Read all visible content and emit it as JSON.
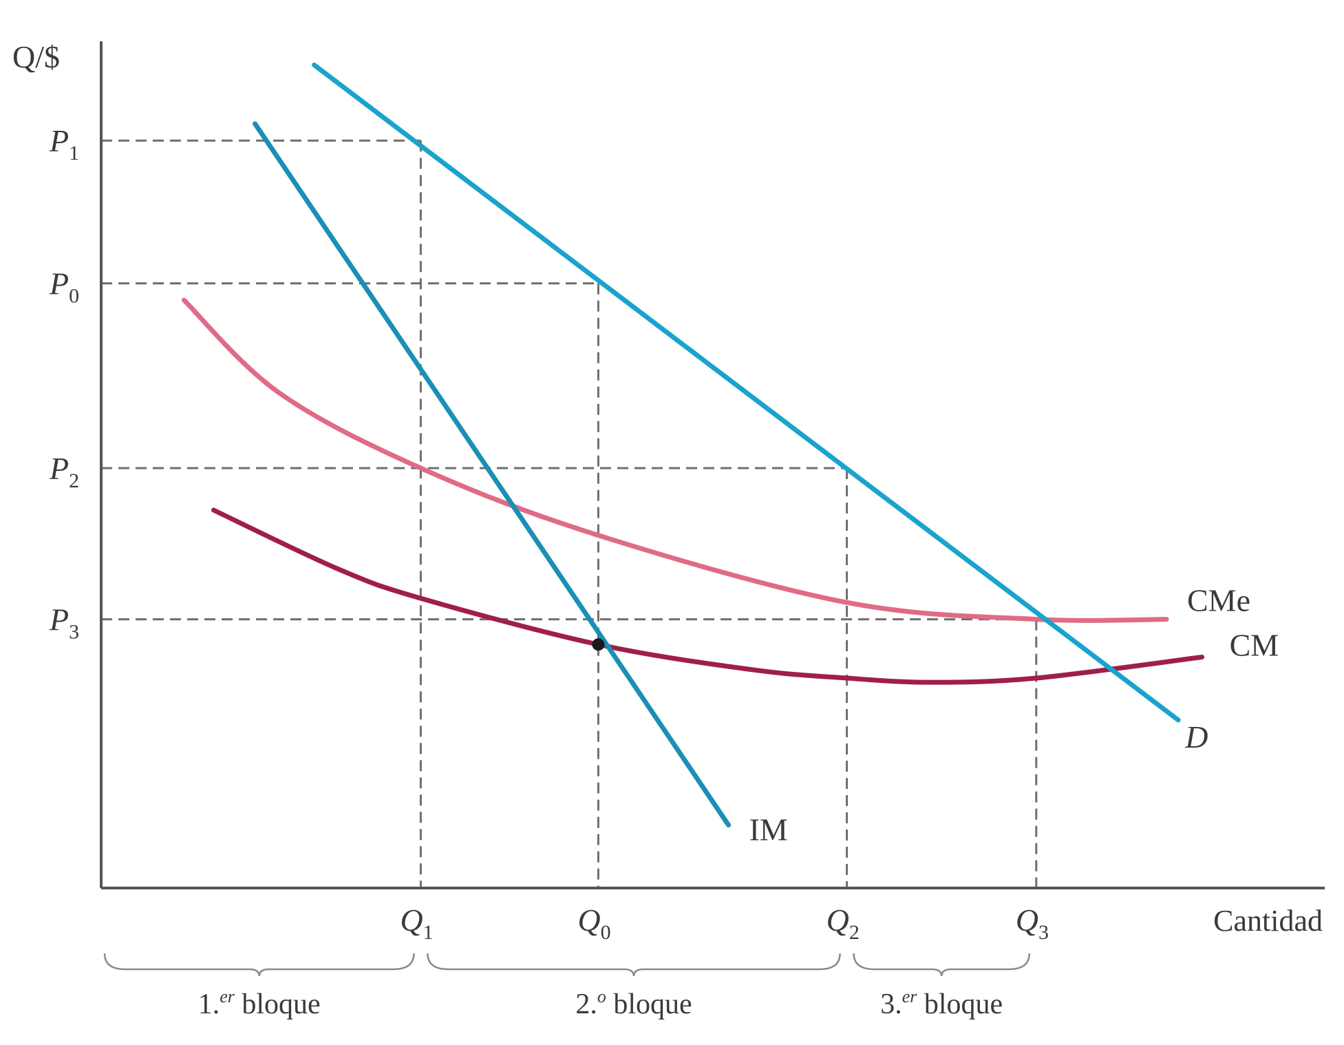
{
  "chart_data": {
    "type": "line",
    "title": "",
    "ylabel": "Q/$",
    "xlabel": "Cantidad",
    "xlim": [
      0,
      10
    ],
    "ylim": [
      0,
      10
    ],
    "grid": false,
    "y_ticks": [
      {
        "main": "P",
        "sub": "1",
        "value": 8.9
      },
      {
        "main": "P",
        "sub": "0",
        "value": 7.2
      },
      {
        "main": "P",
        "sub": "2",
        "value": 5.0
      },
      {
        "main": "P",
        "sub": "3",
        "value": 3.2
      }
    ],
    "x_ticks": [
      {
        "main": "Q",
        "sub": "1",
        "value": 2.7
      },
      {
        "main": "Q",
        "sub": "0",
        "value": 4.2
      },
      {
        "main": "Q",
        "sub": "2",
        "value": 6.3
      },
      {
        "main": "Q",
        "sub": "3",
        "value": 7.9
      }
    ],
    "series": [
      {
        "name": "D",
        "label": "D",
        "color": "#1aa3cc",
        "width": 7,
        "points": [
          [
            1.8,
            9.8
          ],
          [
            2.7,
            8.9
          ],
          [
            4.2,
            7.2
          ],
          [
            6.3,
            5.0
          ],
          [
            7.9,
            3.2
          ],
          [
            9.1,
            2.0
          ]
        ]
      },
      {
        "name": "IM",
        "label": "IM",
        "color": "#1b8fb5",
        "width": 7,
        "points": [
          [
            1.3,
            9.1
          ],
          [
            4.2,
            2.9
          ],
          [
            5.3,
            0.75
          ]
        ]
      },
      {
        "name": "CMe",
        "label": "CMe",
        "color": "#e06b86",
        "width": 7,
        "points": [
          [
            0.7,
            7.0
          ],
          [
            1.5,
            5.9
          ],
          [
            2.7,
            5.0
          ],
          [
            4.2,
            4.2
          ],
          [
            6.3,
            3.4
          ],
          [
            7.9,
            3.2
          ],
          [
            9.0,
            3.2
          ]
        ]
      },
      {
        "name": "CM",
        "label": "CM",
        "color": "#a01e4c",
        "width": 7,
        "points": [
          [
            0.95,
            4.5
          ],
          [
            2.0,
            3.8
          ],
          [
            2.7,
            3.45
          ],
          [
            4.2,
            2.9
          ],
          [
            5.5,
            2.6
          ],
          [
            6.3,
            2.5
          ],
          [
            7.0,
            2.45
          ],
          [
            7.9,
            2.5
          ],
          [
            9.3,
            2.75
          ]
        ]
      }
    ],
    "points": [
      {
        "name": "IM-CM intersection",
        "x": 4.2,
        "y": 2.9
      }
    ],
    "guides": [
      {
        "from": "P1",
        "x": 2.7,
        "y": 8.9
      },
      {
        "from": "P0",
        "x": 4.2,
        "y": 7.2
      },
      {
        "from": "P2",
        "x": 6.3,
        "y": 5.0
      },
      {
        "from": "P3",
        "x": 7.9,
        "y": 3.2
      }
    ],
    "blocks": [
      {
        "label_main": "1.",
        "label_sup": "er",
        "label_rest": " bloque",
        "from": 0,
        "to": 2.7
      },
      {
        "label_main": "2.",
        "label_sup": "o",
        "label_rest": " bloque",
        "from": 2.7,
        "to": 6.3
      },
      {
        "label_main": "3.",
        "label_sup": "er",
        "label_rest": " bloque",
        "from": 6.3,
        "to": 7.9
      }
    ]
  }
}
